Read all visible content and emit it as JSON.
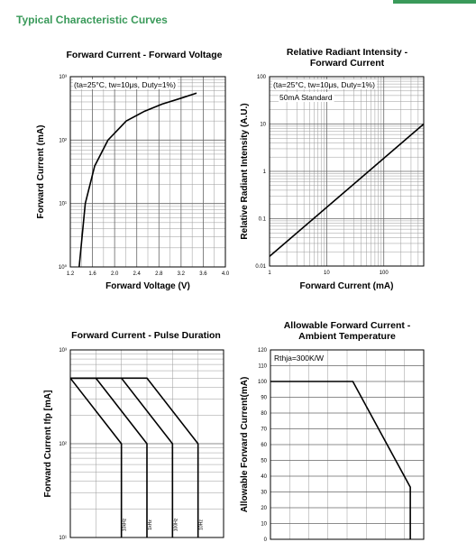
{
  "heading": "Typical Characteristic Curves",
  "chart_data": [
    {
      "type": "line",
      "title": [
        "Forward Current - Forward Voltage"
      ],
      "xlabel": "Forward Voltage (V)",
      "ylabel": "Forward Current (mA)",
      "annotations": [
        "(ta=25°C, tw=10μs, Duty=1%)"
      ],
      "x": [
        1.36,
        1.47,
        1.64,
        1.88,
        2.21,
        2.54,
        2.86,
        3.19,
        3.48
      ],
      "series": [
        {
          "color": "#000000",
          "values": [
            1,
            10,
            39,
            100,
            200,
            285,
            370,
            455,
            550
          ]
        }
      ],
      "xlim": [
        1.2,
        4.0
      ],
      "xticks": [
        1.2,
        1.6,
        {
          "value": 2,
          "label": "2.0"
        },
        2.4,
        2.8,
        3.2,
        3.6,
        {
          "value": 4,
          "label": "4.0"
        }
      ],
      "ylim": [
        1,
        1000
      ],
      "ylog": true,
      "yticks": [
        {
          "value": 1,
          "label": "10⁰"
        },
        {
          "value": 10,
          "label": "10¹"
        },
        {
          "value": 100,
          "label": "10²"
        },
        {
          "value": 1000,
          "label": "10³"
        }
      ],
      "grid": true
    },
    {
      "type": "line",
      "title": [
        "Relative Radiant Intensity -",
        "Forward Current"
      ],
      "xlabel": "Forward Current (mA)",
      "ylabel": "Relative Radiant Intensity (A.U.)",
      "annotations": [
        "(ta=25°C, tw=10μs, Duty=1%)",
        "50mA Standard"
      ],
      "x": [
        1,
        500
      ],
      "series": [
        {
          "color": "#000000",
          "values": [
            0.016,
            10
          ]
        }
      ],
      "xlim": [
        1,
        500
      ],
      "xlog": true,
      "xticks": [
        1,
        10,
        100
      ],
      "ylim": [
        0.01,
        100
      ],
      "ylog": true,
      "yticks": [
        0.01,
        0.1,
        1,
        10,
        100
      ],
      "grid": true
    },
    {
      "type": "line",
      "title": [
        "Forward Current - Pulse Duration"
      ],
      "ylabel": "Forward Current Ifp [mA]",
      "series": [
        {
          "name": "10kHz",
          "color": "#000000",
          "x": [
            0,
            2,
            2
          ],
          "values": [
            500,
            100,
            10
          ]
        },
        {
          "name": "1kHz",
          "color": "#000000",
          "x": [
            0,
            1,
            3,
            3
          ],
          "values": [
            500,
            500,
            100,
            10
          ]
        },
        {
          "name": "100Hz",
          "color": "#000000",
          "x": [
            0,
            2,
            4,
            4
          ],
          "values": [
            500,
            500,
            100,
            10
          ]
        },
        {
          "name": "10Hz",
          "color": "#000000",
          "x": [
            0,
            3,
            5,
            5
          ],
          "values": [
            500,
            500,
            100,
            10
          ]
        }
      ],
      "xlim": [
        0,
        6
      ],
      "ylim": [
        10,
        1000
      ],
      "ylog": true,
      "yticks": [
        {
          "value": 10,
          "label": "10¹"
        },
        {
          "value": 100,
          "label": "10²"
        },
        {
          "value": 1000,
          "label": "10³"
        }
      ],
      "grid": true
    },
    {
      "type": "line",
      "title": [
        "Allowable Forward Current -",
        "Ambient Temperature"
      ],
      "ylabel": "Allowable Forward Current(mA)",
      "annotations": [
        "Rthja=300K/W"
      ],
      "x": [
        0,
        4.3,
        7.3,
        7.3
      ],
      "series": [
        {
          "color": "#000000",
          "values": [
            100,
            100,
            33,
            0
          ]
        }
      ],
      "xlim": [
        0,
        8
      ],
      "ylim": [
        0,
        120
      ],
      "yticks": [
        0,
        10,
        20,
        30,
        40,
        50,
        60,
        70,
        80,
        90,
        100,
        110,
        120
      ],
      "grid": true
    }
  ]
}
